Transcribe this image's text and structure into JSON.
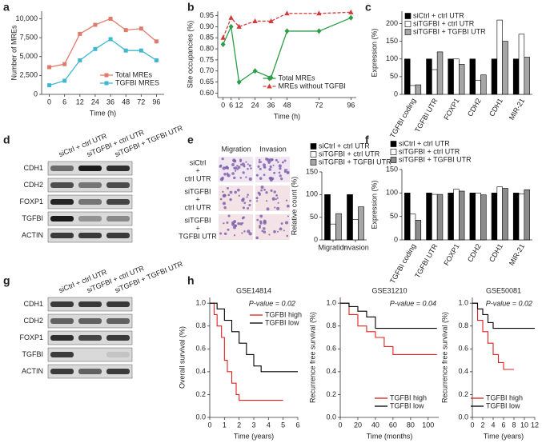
{
  "panel_labels": [
    "a",
    "b",
    "c",
    "d",
    "e",
    "f",
    "g",
    "h"
  ],
  "blot_d": {
    "columns": [
      "siCtrl + ctrl UTR",
      "siTGFBI + ctrl UTR",
      "siTGFBI + TGFBI UTR"
    ],
    "rows": [
      "CDH1",
      "CDH2",
      "FOXP1",
      "TGFBI",
      "ACTIN"
    ]
  },
  "blot_g": {
    "columns": [
      "siCtrl + ctrl UTR",
      "siTGFBI + ctrl UTR",
      "siTGFBI + TGFBI UTR"
    ],
    "rows": [
      "CDH1",
      "CDH2",
      "FOXP1",
      "TGFBI",
      "ACTIN"
    ]
  },
  "micrograph_e": {
    "columns": [
      "Migration",
      "Invasion"
    ],
    "rows": [
      [
        "siCtrl",
        "+",
        "ctrl UTR"
      ],
      [
        "siTGFBI",
        "+",
        "ctrl UTR"
      ],
      [
        "siTGFBI",
        "+",
        "TGFBI UTR"
      ]
    ]
  },
  "chart_data": [
    {
      "type": "line",
      "xlabel": "Time (h)",
      "ylabel": "Number of MREs",
      "categories": [
        "0",
        "6",
        "12",
        "24",
        "36",
        "48",
        "72",
        "96"
      ],
      "ylim": [
        0,
        11000
      ],
      "yticks": [
        0,
        {
          "value": 2500,
          "label": "2,500"
        },
        {
          "value": 5000,
          "label": "5,000"
        },
        {
          "value": 7500,
          "label": "7,500"
        },
        {
          "value": 10000,
          "label": "10,000"
        }
      ],
      "legend": "lower right",
      "series": [
        {
          "name": "Total MREs",
          "color": "#e07b6b",
          "marker": "square",
          "values": [
            3600,
            4000,
            8000,
            9200,
            10000,
            8500,
            8700,
            7000
          ]
        },
        {
          "name": "TGFBI MRES",
          "color": "#3fb8cf",
          "marker": "square",
          "values": [
            1200,
            1800,
            4500,
            6000,
            7300,
            5800,
            5800,
            4500
          ]
        }
      ]
    },
    {
      "type": "line",
      "xlabel": "Time (h)",
      "ylabel": "Site occupancies (%)",
      "x": [
        0,
        6,
        12,
        24,
        36,
        48,
        72,
        96
      ],
      "xlim": [
        -4,
        100
      ],
      "xticks": [
        0,
        6,
        12,
        24,
        36,
        48,
        72,
        96
      ],
      "ylim": [
        0.58,
        0.97
      ],
      "yticks": [
        {
          "value": 0.6,
          "label": "0.60"
        },
        0.65,
        {
          "value": 0.7,
          "label": "0.70"
        },
        0.75,
        {
          "value": 0.8,
          "label": "0.80"
        },
        0.85,
        {
          "value": 0.9,
          "label": "0.90"
        },
        0.95
      ],
      "legend": "lower center",
      "series": [
        {
          "name": "Total MREs",
          "color": "#2e9c48",
          "marker": "diamond",
          "values": [
            0.82,
            0.9,
            0.65,
            0.7,
            0.67,
            0.88,
            0.88,
            0.94
          ]
        },
        {
          "name": "MREs without TGFBI",
          "color": "#d43a3a",
          "marker": "triangle",
          "dashed": true,
          "values": [
            0.85,
            0.94,
            0.9,
            0.925,
            0.925,
            0.96,
            0.96,
            0.965
          ]
        }
      ]
    },
    {
      "type": "bar",
      "ylabel": "Expression (%)",
      "categories": [
        "TGFBI coding",
        "TGFBI UTR",
        "FOXP1",
        "CDH2",
        "CDH1",
        "MIR-21"
      ],
      "xtick_rotation": 60,
      "ylim": [
        0,
        235
      ],
      "yticks": [
        0,
        50,
        100,
        150,
        200
      ],
      "legend": "upper left",
      "series": [
        {
          "name": "siCtrl + ctrl UTR",
          "color": "#000000",
          "values": [
            100,
            100,
            100,
            100,
            100,
            100
          ]
        },
        {
          "name": "siTGFBI + ctrl UTR",
          "color": "#ffffff",
          "values": [
            25,
            70,
            100,
            40,
            210,
            170
          ]
        },
        {
          "name": "siTGFBI + TGFBI UTR",
          "color": "#a6a6a6",
          "values": [
            27,
            120,
            85,
            55,
            150,
            105
          ]
        }
      ]
    },
    {
      "type": "bar",
      "ylabel": "Relative count (%)",
      "categories": [
        "Migration",
        "Invasion"
      ],
      "ylim": [
        0,
        150
      ],
      "yticks": [
        0,
        50,
        100,
        150
      ],
      "legend": "above",
      "series": [
        {
          "name": "siCtrl + ctrl UTR",
          "color": "#000000",
          "values": [
            100,
            100
          ]
        },
        {
          "name": "siTGFBI + ctrl UTR",
          "color": "#ffffff",
          "values": [
            35,
            45
          ]
        },
        {
          "name": "siTGFBI + TGFBI UTR",
          "color": "#a6a6a6",
          "values": [
            58,
            73
          ]
        }
      ]
    },
    {
      "type": "bar",
      "ylabel": "Expression (%)",
      "categories": [
        "TGFBI coding",
        "TGFBI UTR",
        "FOXP1",
        "CDH2",
        "CDH1",
        "MIR-21"
      ],
      "xtick_rotation": 60,
      "ylim": [
        0,
        150
      ],
      "yticks": [
        0,
        50,
        100,
        150
      ],
      "legend": "above",
      "series": [
        {
          "name": "siCtrl + ctrl UTR",
          "color": "#000000",
          "values": [
            100,
            100,
            100,
            100,
            100,
            100
          ]
        },
        {
          "name": "siTGFBI + ctrl UTR",
          "color": "#ffffff",
          "values": [
            55,
            97,
            108,
            100,
            113,
            98
          ]
        },
        {
          "name": "siTGFBI + TGFBI UTR",
          "color": "#8c8c8c",
          "values": [
            42,
            97,
            104,
            96,
            110,
            107
          ]
        }
      ]
    },
    {
      "type": "step",
      "title": "GSE14814",
      "xlabel": "Time (years)",
      "ylabel": "Overall survival (%)",
      "annotation": "P-value = 0.02",
      "xlim": [
        0,
        6
      ],
      "xticks": [
        0,
        1,
        2,
        3,
        4,
        5,
        6
      ],
      "ylim": [
        0,
        1.05
      ],
      "yticks": [
        {
          "value": 0,
          "label": "0.0"
        },
        0.2,
        0.4,
        0.6,
        0.8,
        {
          "value": 1,
          "label": "1.0"
        }
      ],
      "legend": "upper right",
      "series": [
        {
          "name": "TGFBI high",
          "color": "#e02020",
          "x": [
            0,
            0.3,
            0.5,
            0.8,
            1,
            1.2,
            1.5,
            1.8,
            2,
            5
          ],
          "values": [
            1,
            0.9,
            0.8,
            0.7,
            0.5,
            0.4,
            0.3,
            0.2,
            0.15,
            0.15
          ]
        },
        {
          "name": "TGFBI low",
          "color": "#000000",
          "x": [
            0,
            0.5,
            1,
            1.5,
            2,
            2.5,
            3,
            3.5,
            4,
            6
          ],
          "values": [
            1,
            0.95,
            0.85,
            0.75,
            0.65,
            0.55,
            0.45,
            0.4,
            0.4,
            0.4
          ]
        }
      ]
    },
    {
      "type": "step",
      "title": "GSE31210",
      "xlabel": "Time (months)",
      "ylabel": "Recurrence free survival (%)",
      "annotation": "P-value = 0.04",
      "xlim": [
        0,
        112
      ],
      "xticks": [
        0,
        20,
        40,
        60,
        80,
        100
      ],
      "ylim": [
        0,
        1.05
      ],
      "yticks": [
        {
          "value": 0,
          "label": "0.0"
        },
        0.2,
        0.4,
        0.6,
        0.8,
        {
          "value": 1,
          "label": "1.0"
        }
      ],
      "legend": "lower right",
      "series": [
        {
          "name": "TGFBI high",
          "color": "#e02020",
          "x": [
            0,
            10,
            20,
            30,
            40,
            50,
            60,
            110
          ],
          "values": [
            1,
            0.9,
            0.8,
            0.75,
            0.7,
            0.62,
            0.55,
            0.55
          ]
        },
        {
          "name": "TGFBI low",
          "color": "#000000",
          "x": [
            0,
            10,
            20,
            30,
            40,
            110
          ],
          "values": [
            1,
            0.97,
            0.93,
            0.88,
            0.78,
            0.78
          ]
        }
      ]
    },
    {
      "type": "step",
      "title": "GSE50081",
      "xlabel": "Time (years)",
      "ylabel": "Recurrence free survival (%)",
      "annotation": "P-value = 0.02",
      "xlim": [
        0,
        12
      ],
      "xticks": [
        0,
        2,
        4,
        6,
        8,
        10,
        12
      ],
      "ylim": [
        0,
        1.05
      ],
      "yticks": [
        {
          "value": 0,
          "label": "0.0"
        },
        0.2,
        0.4,
        0.6,
        0.8,
        {
          "value": 1,
          "label": "1.0"
        }
      ],
      "legend": "lower right",
      "series": [
        {
          "name": "TGFBI high",
          "color": "#e02020",
          "x": [
            0,
            1,
            2,
            3,
            4,
            5,
            6,
            8
          ],
          "values": [
            1,
            0.85,
            0.75,
            0.65,
            0.55,
            0.48,
            0.42,
            0.42
          ]
        },
        {
          "name": "TGFBI low",
          "color": "#000000",
          "x": [
            0,
            1,
            2,
            3,
            4,
            12
          ],
          "values": [
            1,
            0.95,
            0.9,
            0.83,
            0.78,
            0.78
          ]
        }
      ]
    }
  ]
}
